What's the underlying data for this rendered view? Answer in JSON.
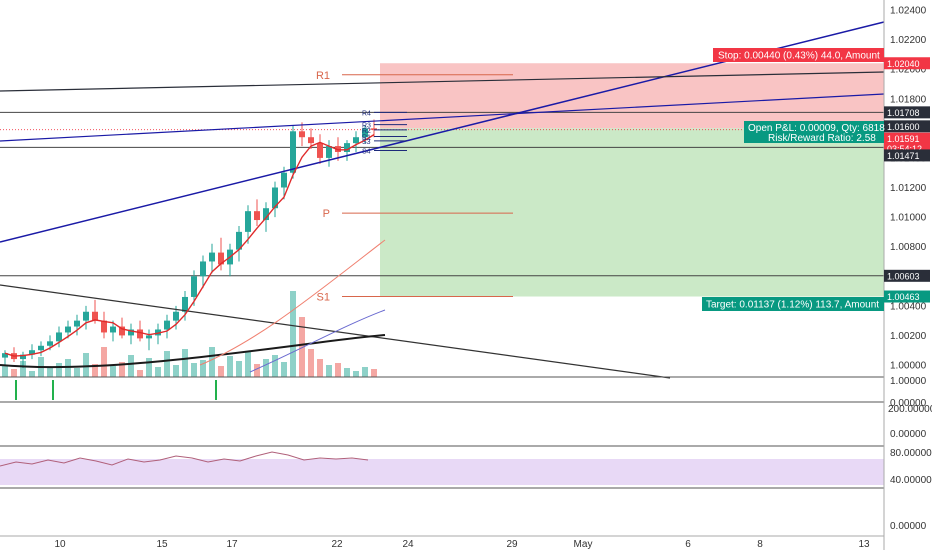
{
  "chart_data": {
    "type": "candlestick",
    "price_axis_ticks": [
      "1.02400",
      "1.02200",
      "1.02000",
      "1.01800",
      "1.01600",
      "1.01400",
      "1.01200",
      "1.01000",
      "1.00800",
      "1.00600",
      "1.00400",
      "1.00200",
      "1.00000"
    ],
    "x_axis_ticks": [
      "10",
      "15",
      "17",
      "22",
      "24",
      "29",
      "May",
      "6",
      "8",
      "13"
    ],
    "price_flags": [
      {
        "value": "1.02040",
        "color": "#f23645"
      },
      {
        "value": "1.01708",
        "color": "#2a2e39"
      },
      {
        "value": "1.01600",
        "color": "#2a2e39"
      },
      {
        "value": "1.01591",
        "color": "#f23645"
      },
      {
        "value": "03:54:12",
        "color": "#f23645"
      },
      {
        "value": "1.01471",
        "color": "#2a2e39"
      },
      {
        "value": "1.00603",
        "color": "#2a2e39"
      },
      {
        "value": "1.00463",
        "color": "#089981"
      }
    ],
    "position": {
      "stop_label": "Stop: 0.00440 (0.43%) 44.0, Amount",
      "pnl_label": "Open P&L: 0.00009, Qty: 6818",
      "rr_label": "Risk/Reward Ratio: 2.58",
      "target_label": "Target: 0.01137 (1.12%) 113.7, Amount",
      "entry": 1.016,
      "stop": 1.0204,
      "target": 1.00463
    },
    "pivots": {
      "labels": [
        {
          "name": "R1",
          "value": 1.01962
        },
        {
          "name": "P",
          "value": 1.01027
        },
        {
          "name": "S1",
          "value": 1.00463
        }
      ],
      "small_labels": [
        {
          "name": "R4",
          "value": 1.01708
        },
        {
          "name": "R3",
          "value": 1.01625
        },
        {
          "name": "R2",
          "value": 1.0159
        },
        {
          "name": "R1",
          "value": 1.01545
        },
        {
          "name": "S3",
          "value": 1.01515
        },
        {
          "name": "S4",
          "value": 1.0145
        }
      ]
    },
    "volume_panel": {
      "ticks": [
        "1.00000",
        "0.00000"
      ]
    },
    "indicator_panel": {
      "ticks": [
        "200.00000",
        "0.00000"
      ]
    },
    "rsi_panel": {
      "ticks": [
        "80.00000",
        "40.00000",
        "0.00000"
      ]
    },
    "colors": {
      "up": "#26a69a",
      "down": "#ef5350",
      "trendline": "#1a1aa6",
      "pivot": "#d8664b",
      "ma_fast": "#e02b2b",
      "ma_slow": "#1a1a1a",
      "rsi_band": "#e8d9f6",
      "profit_zone": "#cbe9c7",
      "loss_zone": "#f9c4c4"
    }
  }
}
